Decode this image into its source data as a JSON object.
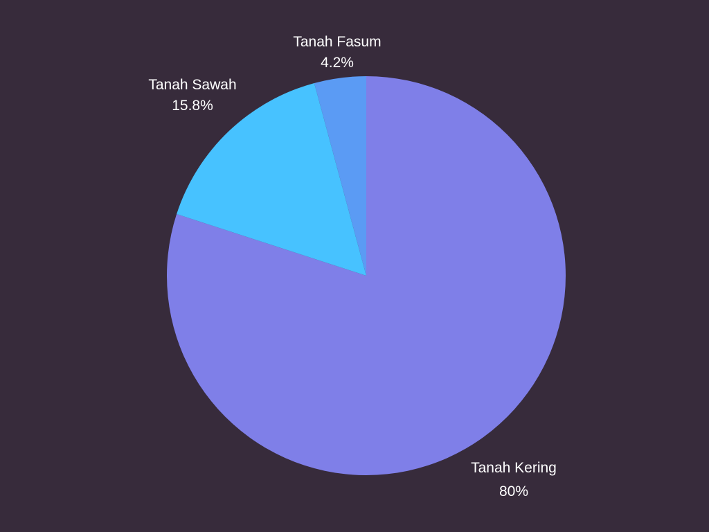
{
  "page": {
    "background": "#372b3b"
  },
  "chart_data": {
    "type": "pie",
    "slices": [
      {
        "label": "Tanah Kering",
        "value": 80,
        "value_label": "80%",
        "color": "#7f7fe8"
      },
      {
        "label": "Tanah Sawah",
        "value": 15.8,
        "value_label": "15.8%",
        "color": "#47c2ff"
      },
      {
        "label": "Tanah Fasum",
        "value": 4.2,
        "value_label": "4.2%",
        "color": "#5b9bf4"
      }
    ],
    "start": "12 o'clock",
    "direction": "clockwise",
    "legend": "none",
    "label_text_color": "#ffffff"
  }
}
